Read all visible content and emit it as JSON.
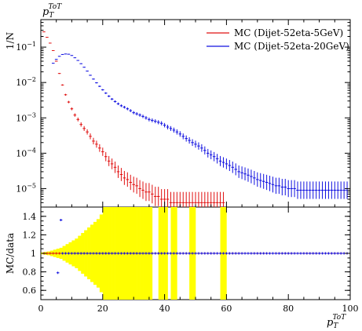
{
  "chart_data": [
    {
      "type": "scatter",
      "panel": "main",
      "ylabel": "1/N",
      "yscale": "log",
      "xlim": [
        0,
        100
      ],
      "ylim": [
        3e-06,
        0.6
      ],
      "yticks": [
        1e-05,
        0.0001,
        0.001,
        0.01,
        0.1
      ],
      "ytick_labels": [
        {
          "base": "10",
          "exp": "−5"
        },
        {
          "base": "10",
          "exp": "−4"
        },
        {
          "base": "10",
          "exp": "−3"
        },
        {
          "base": "10",
          "exp": "−2"
        },
        {
          "base": "10",
          "exp": "−1"
        }
      ],
      "legend_position": "top-right",
      "grid": false,
      "series": [
        {
          "name": "MC (Dijet-52eta-5GeV)",
          "color": "#e01010",
          "x": [
            1,
            2,
            3,
            4,
            5,
            6,
            7,
            8,
            9,
            10,
            11,
            12,
            13,
            14,
            15,
            16,
            17,
            18,
            19,
            20,
            21,
            22,
            23,
            24,
            25,
            26,
            27,
            28,
            29,
            30,
            31,
            32,
            33,
            34,
            35,
            36,
            37,
            38,
            39,
            40,
            41,
            42,
            43,
            44,
            45,
            46,
            47,
            48,
            49,
            50,
            51,
            52,
            53,
            54,
            55,
            56,
            57,
            58,
            59
          ],
          "y": [
            0.27,
            0.19,
            0.13,
            0.08,
            0.04,
            0.018,
            0.0085,
            0.0045,
            0.0028,
            0.0018,
            0.0012,
            0.0009,
            0.00065,
            0.0005,
            0.0004,
            0.0003,
            0.00022,
            0.00018,
            0.00014,
            0.00011,
            8e-05,
            6e-05,
            5e-05,
            4e-05,
            3e-05,
            2.5e-05,
            2e-05,
            1.8e-05,
            1.5e-05,
            1.3e-05,
            1.2e-05,
            1e-05,
            9e-06,
            8e-06,
            8e-06,
            7e-06,
            6e-06,
            6e-06,
            5e-06,
            5e-06,
            5e-06,
            4e-06,
            4e-06,
            4e-06,
            4e-06,
            4e-06,
            4e-06,
            4e-06,
            4e-06,
            4e-06,
            4e-06,
            4e-06,
            4e-06,
            4e-06,
            4e-06,
            4e-06,
            4e-06,
            4e-06,
            4e-06
          ]
        },
        {
          "name": "MC (Dijet-52eta-20GeV)",
          "color": "#1010e0",
          "x": [
            4,
            5,
            6,
            7,
            8,
            9,
            10,
            11,
            12,
            13,
            14,
            15,
            16,
            17,
            18,
            19,
            20,
            21,
            22,
            23,
            24,
            25,
            26,
            27,
            28,
            29,
            30,
            31,
            32,
            33,
            34,
            35,
            36,
            37,
            38,
            39,
            40,
            41,
            42,
            43,
            44,
            45,
            46,
            47,
            48,
            49,
            50,
            51,
            52,
            53,
            54,
            55,
            56,
            57,
            58,
            59,
            60,
            61,
            62,
            63,
            64,
            65,
            66,
            67,
            68,
            69,
            70,
            71,
            72,
            73,
            74,
            75,
            76,
            77,
            78,
            79,
            80,
            81,
            82,
            83,
            84,
            85,
            86,
            87,
            88,
            89,
            90,
            91,
            92,
            93,
            94,
            95,
            96,
            97,
            98,
            99
          ],
          "y": [
            0.035,
            0.045,
            0.055,
            0.062,
            0.064,
            0.063,
            0.058,
            0.05,
            0.042,
            0.034,
            0.027,
            0.021,
            0.016,
            0.0125,
            0.0098,
            0.0078,
            0.0062,
            0.005,
            0.0041,
            0.0034,
            0.0029,
            0.0025,
            0.0022,
            0.002,
            0.0018,
            0.0016,
            0.0014,
            0.0013,
            0.0012,
            0.0011,
            0.001,
            0.0009,
            0.00085,
            0.0008,
            0.00075,
            0.0007,
            0.00062,
            0.00055,
            0.0005,
            0.00045,
            0.0004,
            0.00035,
            0.0003,
            0.00026,
            0.00023,
            0.0002,
            0.00018,
            0.00016,
            0.00014,
            0.00012,
            0.0001,
            9e-05,
            8e-05,
            7e-05,
            6e-05,
            5.5e-05,
            5e-05,
            4.5e-05,
            4e-05,
            3.5e-05,
            3e-05,
            2.8e-05,
            2.6e-05,
            2.4e-05,
            2.2e-05,
            2e-05,
            1.8e-05,
            1.7e-05,
            1.6e-05,
            1.5e-05,
            1.4e-05,
            1.3e-05,
            1.2e-05,
            1.2e-05,
            1.1e-05,
            1.1e-05,
            1e-05,
            1e-05,
            1e-05,
            9e-06,
            9e-06,
            9e-06,
            9e-06,
            9e-06,
            9e-06,
            9e-06,
            9e-06,
            9e-06,
            9e-06,
            9e-06,
            9e-06,
            9e-06,
            9e-06,
            9e-06,
            9e-06,
            9e-06
          ]
        }
      ]
    },
    {
      "type": "area",
      "panel": "ratio",
      "ylabel": "MC/data",
      "xlim": [
        0,
        100
      ],
      "ylim": [
        0.5,
        1.5
      ],
      "yticks": [
        0.6,
        0.8,
        1,
        1.2,
        1.4
      ],
      "ytick_labels": [
        "0.6",
        "0.8",
        "1",
        "1.2",
        "1.4"
      ],
      "xticks": [
        0,
        20,
        40,
        60,
        80,
        100
      ],
      "xtick_labels": [
        "0",
        "20",
        "40",
        "60",
        "80",
        "100"
      ],
      "xlabel": {
        "base": "p",
        "sub": "T",
        "sup": "ToT"
      },
      "reference_line": 1,
      "band_color": "#ffff00",
      "band": {
        "x": [
          0,
          1,
          2,
          3,
          4,
          5,
          6,
          7,
          8,
          9,
          10,
          11,
          12,
          13,
          14,
          15,
          16,
          17,
          18,
          19,
          20,
          21,
          22,
          23,
          24,
          25,
          26,
          27,
          28,
          29,
          30,
          31,
          32,
          33,
          34,
          35,
          38,
          39,
          40,
          42,
          43,
          48,
          49,
          58,
          59
        ],
        "halfwidth": [
          0.01,
          0.015,
          0.02,
          0.03,
          0.04,
          0.05,
          0.06,
          0.08,
          0.1,
          0.12,
          0.14,
          0.16,
          0.19,
          0.22,
          0.25,
          0.28,
          0.31,
          0.34,
          0.37,
          0.42,
          0.5,
          0.5,
          0.5,
          0.5,
          0.5,
          0.5,
          0.5,
          0.5,
          0.5,
          0.5,
          0.5,
          0.5,
          0.5,
          0.5,
          0.5,
          0.5,
          0.5,
          0.5,
          0.5,
          0.5,
          0.5,
          0.5,
          0.5,
          0.5,
          0.5
        ]
      },
      "series": [
        {
          "color": "#e01010",
          "x": [
            1,
            2,
            3,
            4,
            5,
            6,
            7,
            8,
            9,
            10,
            11,
            12,
            13,
            14,
            15,
            16,
            17,
            18,
            19,
            20,
            21,
            22,
            23,
            24,
            25,
            26,
            27,
            28,
            29,
            30,
            31,
            32,
            33,
            34,
            35,
            36,
            37,
            38,
            39,
            40,
            41,
            42,
            43,
            44,
            45,
            46,
            47,
            48,
            49,
            50,
            51,
            52,
            53,
            54,
            55,
            56,
            57,
            58,
            59,
            60,
            61,
            62,
            63,
            64,
            65,
            66,
            67,
            68,
            69,
            70,
            71,
            72,
            73,
            74,
            75,
            76,
            77,
            78,
            79,
            80,
            81,
            82,
            83,
            84,
            85,
            86,
            87,
            88,
            89,
            90,
            91,
            92,
            93,
            94,
            95,
            96,
            97,
            98,
            99
          ],
          "y": 1
        },
        {
          "color": "#1010e0",
          "x": [
            7,
            8,
            9,
            10,
            11,
            12,
            13,
            14,
            15,
            16,
            17,
            18,
            19,
            20,
            21,
            22,
            23,
            24,
            25,
            26,
            27,
            28,
            29,
            30,
            31,
            32,
            33,
            34,
            35,
            36,
            37,
            38,
            39,
            40,
            41,
            42,
            43,
            44,
            45,
            46,
            47,
            48,
            49,
            50,
            51,
            52,
            53,
            54,
            55,
            56,
            57,
            58,
            59,
            60,
            61,
            62,
            63,
            64,
            65,
            66,
            67,
            68,
            69,
            70,
            71,
            72,
            73,
            74,
            75,
            76,
            77,
            78,
            79,
            80,
            81,
            82,
            83,
            84,
            85,
            86,
            87,
            88,
            89,
            90,
            91,
            92,
            93,
            94,
            95,
            96,
            97,
            98,
            99
          ],
          "y": 1
        },
        {
          "color": "#1010e0",
          "x": [
            6.5
          ],
          "y": [
            1.36
          ]
        },
        {
          "color": "#1010e0",
          "x": [
            5.5
          ],
          "y": [
            0.79
          ]
        }
      ]
    }
  ],
  "axes_text": {
    "top_label": {
      "base": "p",
      "sub": "T",
      "sup": "ToT"
    }
  }
}
